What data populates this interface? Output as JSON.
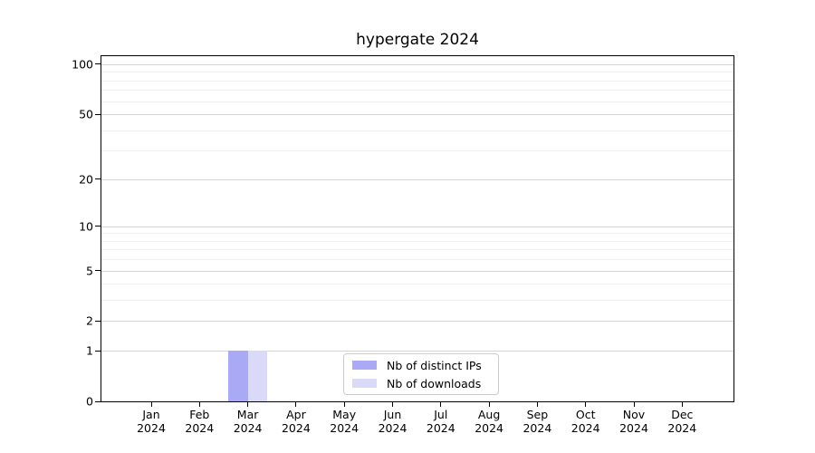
{
  "chart_data": {
    "type": "bar",
    "title": "hypergate 2024",
    "x_categories": [
      {
        "month": "Jan",
        "year": "2024"
      },
      {
        "month": "Feb",
        "year": "2024"
      },
      {
        "month": "Mar",
        "year": "2024"
      },
      {
        "month": "Apr",
        "year": "2024"
      },
      {
        "month": "May",
        "year": "2024"
      },
      {
        "month": "Jun",
        "year": "2024"
      },
      {
        "month": "Jul",
        "year": "2024"
      },
      {
        "month": "Aug",
        "year": "2024"
      },
      {
        "month": "Sep",
        "year": "2024"
      },
      {
        "month": "Oct",
        "year": "2024"
      },
      {
        "month": "Nov",
        "year": "2024"
      },
      {
        "month": "Dec",
        "year": "2024"
      }
    ],
    "series": [
      {
        "name": "Nb of distinct IPs",
        "color": "#a9a9f5",
        "values": [
          0,
          0,
          1,
          0,
          0,
          0,
          0,
          0,
          0,
          0,
          0,
          0
        ]
      },
      {
        "name": "Nb of downloads",
        "color": "#dadaf8",
        "values": [
          0,
          0,
          1,
          0,
          0,
          0,
          0,
          0,
          0,
          0,
          0,
          0
        ]
      }
    ],
    "y_axis": {
      "scale": "log1p",
      "major_ticks": [
        0,
        1,
        2,
        5,
        10,
        20,
        50,
        100
      ],
      "minor_ticks": [
        3,
        4,
        6,
        7,
        8,
        9,
        30,
        40,
        60,
        70,
        80,
        90
      ],
      "ylim": [
        0,
        111
      ]
    },
    "grid": {
      "major_color": "#d4d4d4",
      "minor_color": "#efefef"
    },
    "legend": {
      "position": "lower center"
    }
  }
}
